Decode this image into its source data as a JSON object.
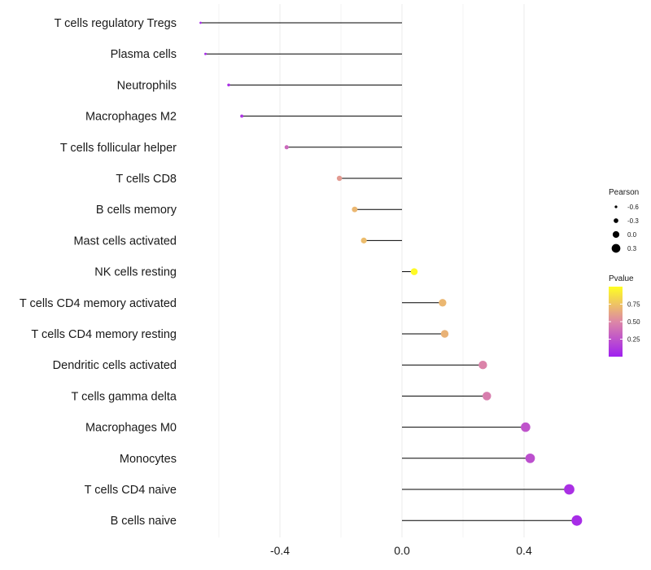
{
  "chart_data": {
    "type": "lollipop",
    "title": "",
    "xlabel": "",
    "ylabel": "",
    "xlim": [
      -0.67,
      0.6
    ],
    "xticks": [
      -0.4,
      0.0,
      0.4
    ],
    "xtick_labels": [
      "-0.4",
      "0.0",
      "0.4"
    ],
    "grid": true,
    "legend_position": "right",
    "categories": [
      "T cells regulatory  Tregs",
      "Plasma cells",
      "Neutrophils",
      "Macrophages M2",
      "T cells follicular helper",
      "T cells CD8",
      "B cells memory",
      "Mast cells activated",
      "NK cells resting",
      "T cells CD4 memory activated",
      "T cells CD4 memory resting",
      "Dendritic cells activated",
      "T cells gamma delta",
      "Macrophages M0",
      "Monocytes",
      "T cells CD4 naive",
      "B cells naive"
    ],
    "pearson": [
      -0.66,
      -0.644,
      -0.568,
      -0.525,
      -0.378,
      -0.205,
      -0.155,
      -0.125,
      0.04,
      0.133,
      0.14,
      0.265,
      0.278,
      0.405,
      0.42,
      0.548,
      0.573
    ],
    "pvalue": [
      0.05,
      0.05,
      0.08,
      0.1,
      0.35,
      0.58,
      0.7,
      0.72,
      0.98,
      0.7,
      0.68,
      0.48,
      0.45,
      0.25,
      0.23,
      0.08,
      0.06
    ],
    "size_legend": {
      "title": "Pearson",
      "values": [
        -0.6,
        -0.3,
        0.0,
        0.3
      ],
      "labels": [
        "-0.6",
        "-0.3",
        "0.0",
        "0.3"
      ]
    },
    "color_legend": {
      "title": "Pvalue",
      "range": [
        0.0,
        1.0
      ],
      "ticks": [
        0.25,
        0.5,
        0.75
      ],
      "tick_labels": [
        "0.25",
        "0.50",
        "0.75"
      ],
      "low_color": "#a020f0",
      "mid_color": "#dd87a6",
      "high_color": "#ffff22"
    }
  }
}
